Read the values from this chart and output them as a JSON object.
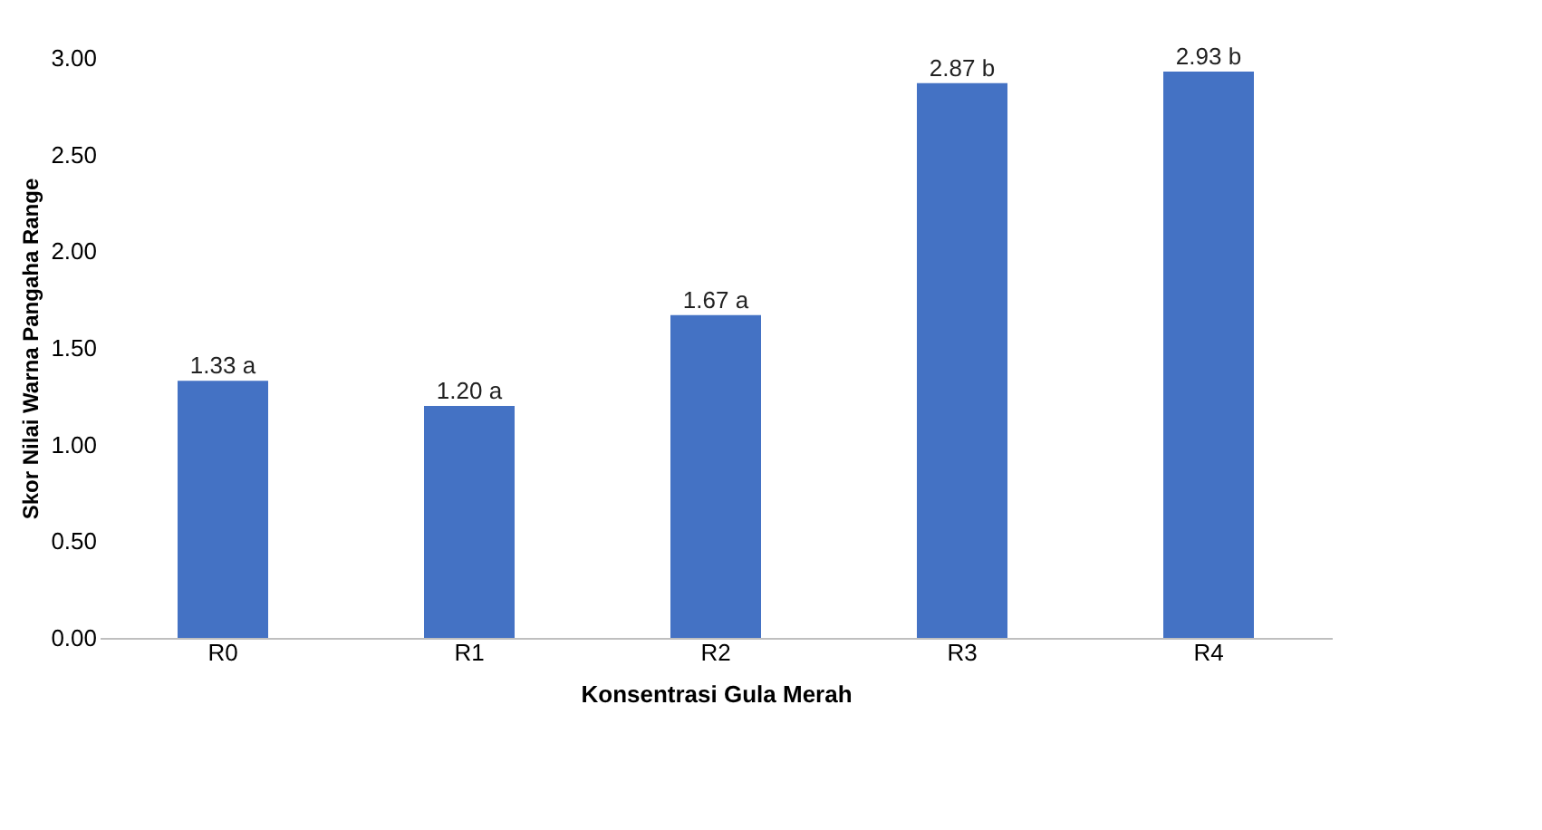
{
  "chart_data": {
    "type": "bar",
    "xlabel": "Konsentrasi Gula Merah",
    "ylabel": "Skor Nilai Warna Pangaha Range",
    "categories": [
      "R0",
      "R1",
      "R2",
      "R3",
      "R4"
    ],
    "values": [
      1.33,
      1.2,
      1.67,
      2.87,
      2.93
    ],
    "value_labels": [
      "1.33 a",
      "1.20 a",
      "1.67 a",
      "2.87 b",
      "2.93 b"
    ],
    "color": "#4472c4",
    "ylim": [
      0,
      3
    ],
    "yticks": [
      {
        "value": 0,
        "label": "0.00"
      },
      {
        "value": 0.5,
        "label": "0.50"
      },
      {
        "value": 1,
        "label": "1.00"
      },
      {
        "value": 1.5,
        "label": "1.50"
      },
      {
        "value": 2,
        "label": "2.00"
      },
      {
        "value": 2.5,
        "label": "2.50"
      },
      {
        "value": 3,
        "label": "3.00"
      }
    ],
    "grid": false
  }
}
